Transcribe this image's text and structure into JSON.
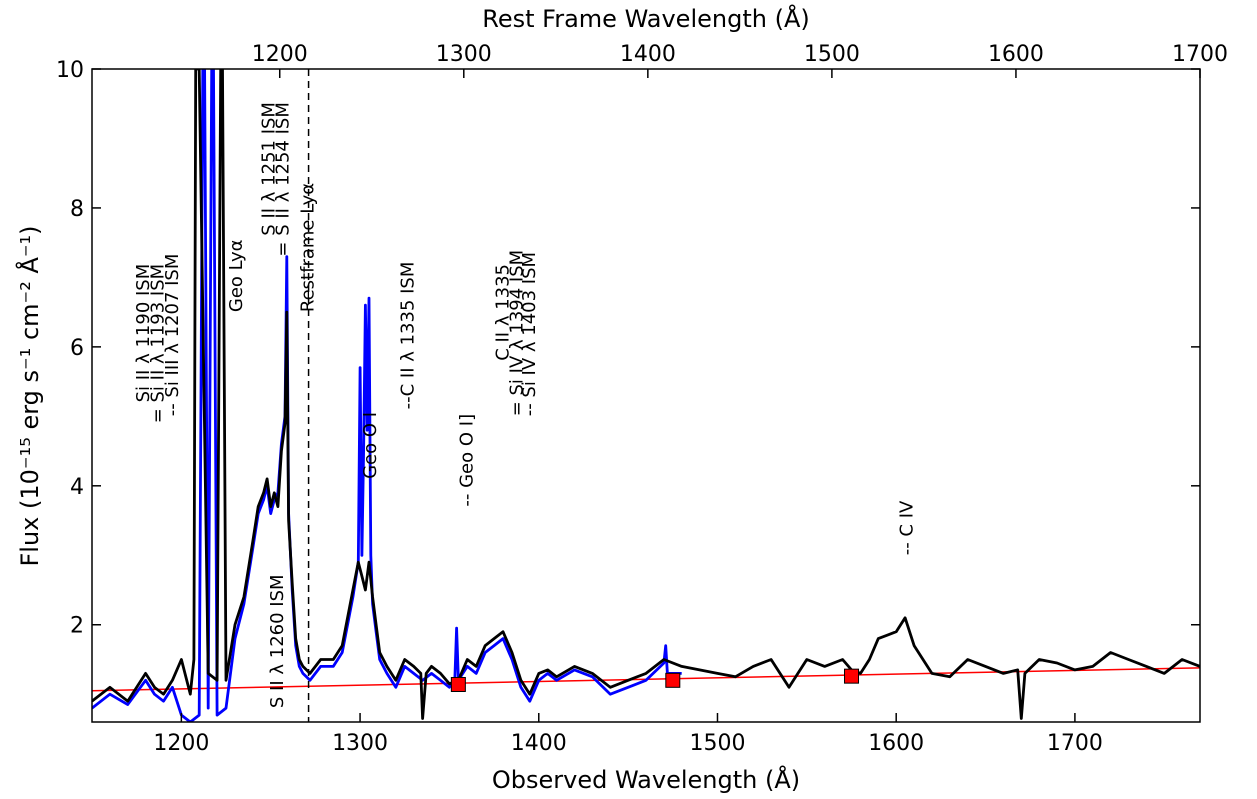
{
  "chart_data": {
    "type": "line",
    "title": "",
    "xlabel": "Observed Wavelength (Å)",
    "x2label": "Rest Frame Wavelength (Å)",
    "ylabel": "Flux (10⁻¹⁵ erg s⁻¹ cm⁻² Å⁻¹)",
    "xlim": [
      1150,
      1770
    ],
    "ylim": [
      0.6,
      10
    ],
    "x2lim": [
      1098,
      1700
    ],
    "x_ticks": [
      1200,
      1300,
      1400,
      1500,
      1600,
      1700
    ],
    "x2_ticks": [
      1200,
      1300,
      1400,
      1500,
      1600,
      1700
    ],
    "y_ticks": [
      2,
      4,
      6,
      8,
      10
    ],
    "grid": false,
    "colors": {
      "black_series": "#000000",
      "blue_series": "#0000ff",
      "continuum": "#ff0000",
      "markers": "#ff0000"
    },
    "series": [
      {
        "color": "#000000",
        "x": [
          1150,
          1160,
          1170,
          1180,
          1185,
          1190,
          1195,
          1200,
          1205,
          1207,
          1208,
          1210,
          1215,
          1220,
          1222,
          1223,
          1225,
          1230,
          1235,
          1240,
          1243,
          1246,
          1248,
          1250,
          1252,
          1254,
          1256,
          1258,
          1259,
          1260,
          1262,
          1264,
          1266,
          1268,
          1272,
          1278,
          1285,
          1290,
          1296,
          1299,
          1301,
          1303,
          1305,
          1307,
          1309,
          1311,
          1315,
          1320,
          1325,
          1330,
          1334,
          1335,
          1337,
          1340,
          1345,
          1350,
          1355,
          1360,
          1365,
          1370,
          1375,
          1380,
          1385,
          1390,
          1395,
          1400,
          1405,
          1410,
          1420,
          1430,
          1440,
          1450,
          1460,
          1470,
          1480,
          1490,
          1500,
          1510,
          1520,
          1530,
          1540,
          1550,
          1560,
          1570,
          1575,
          1580,
          1585,
          1590,
          1600,
          1605,
          1610,
          1620,
          1630,
          1640,
          1650,
          1660,
          1668,
          1670,
          1672,
          1680,
          1690,
          1700,
          1710,
          1720,
          1730,
          1740,
          1750,
          1760,
          1770
        ],
        "y": [
          0.9,
          1.1,
          0.9,
          1.3,
          1.1,
          1.0,
          1.2,
          1.5,
          1.0,
          1.5,
          10,
          10,
          1.3,
          1.2,
          10,
          10,
          1.2,
          2.0,
          2.4,
          3.2,
          3.7,
          3.9,
          4.1,
          3.7,
          3.9,
          3.7,
          4.5,
          4.9,
          6.5,
          3.5,
          2.6,
          1.8,
          1.5,
          1.4,
          1.3,
          1.5,
          1.5,
          1.7,
          2.5,
          2.9,
          2.7,
          2.5,
          2.9,
          2.4,
          2.0,
          1.6,
          1.4,
          1.2,
          1.5,
          1.4,
          1.3,
          0.65,
          1.3,
          1.4,
          1.3,
          1.15,
          1.2,
          1.5,
          1.4,
          1.7,
          1.8,
          1.9,
          1.6,
          1.2,
          1.0,
          1.3,
          1.35,
          1.25,
          1.4,
          1.3,
          1.1,
          1.2,
          1.3,
          1.5,
          1.4,
          1.35,
          1.3,
          1.25,
          1.4,
          1.5,
          1.1,
          1.5,
          1.4,
          1.5,
          1.35,
          1.3,
          1.5,
          1.8,
          1.9,
          2.1,
          1.7,
          1.3,
          1.25,
          1.5,
          1.4,
          1.3,
          1.35,
          0.65,
          1.3,
          1.5,
          1.45,
          1.35,
          1.4,
          1.6,
          1.5,
          1.4,
          1.3,
          1.5,
          1.4
        ]
      },
      {
        "color": "#0000ff",
        "x": [
          1150,
          1160,
          1170,
          1180,
          1185,
          1190,
          1195,
          1200,
          1205,
          1210,
          1212,
          1213,
          1215,
          1217,
          1218,
          1220,
          1225,
          1230,
          1235,
          1240,
          1243,
          1246,
          1248,
          1250,
          1252,
          1254,
          1256,
          1258,
          1259,
          1260,
          1262,
          1264,
          1266,
          1268,
          1272,
          1278,
          1285,
          1290,
          1296,
          1299,
          1300,
          1301,
          1302,
          1303,
          1304,
          1305,
          1306,
          1307,
          1309,
          1311,
          1315,
          1320,
          1325,
          1330,
          1335,
          1340,
          1345,
          1350,
          1353,
          1354,
          1355,
          1360,
          1365,
          1370,
          1375,
          1380,
          1385,
          1390,
          1395,
          1400,
          1405,
          1410,
          1420,
          1430,
          1440,
          1450,
          1460,
          1470,
          1471,
          1472,
          1480
        ],
        "y": [
          0.8,
          1.0,
          0.85,
          1.2,
          1.0,
          0.9,
          1.1,
          0.7,
          0.6,
          0.7,
          10,
          10,
          0.8,
          10,
          10,
          0.7,
          0.8,
          1.8,
          2.3,
          3.1,
          3.6,
          3.8,
          4.0,
          3.6,
          3.8,
          3.9,
          4.6,
          5.0,
          7.3,
          3.6,
          2.5,
          1.7,
          1.4,
          1.3,
          1.2,
          1.4,
          1.4,
          1.6,
          2.4,
          2.9,
          5.7,
          3.0,
          4.5,
          6.6,
          4.8,
          6.7,
          3.0,
          2.3,
          1.9,
          1.5,
          1.3,
          1.1,
          1.4,
          1.3,
          1.2,
          1.3,
          1.2,
          1.1,
          1.2,
          1.95,
          1.2,
          1.4,
          1.3,
          1.6,
          1.7,
          1.8,
          1.5,
          1.1,
          0.9,
          1.2,
          1.3,
          1.2,
          1.35,
          1.25,
          1.0,
          1.1,
          1.2,
          1.45,
          1.7,
          1.3,
          1.3
        ]
      }
    ],
    "continuum": {
      "x": [
        1150,
        1770
      ],
      "y": [
        1.05,
        1.38
      ]
    },
    "markers": {
      "x": [
        1355,
        1475,
        1575
      ],
      "y": [
        1.14,
        1.2,
        1.26
      ]
    },
    "annotations": [
      {
        "text": "Si II λ 1190 ISM",
        "x": 1182,
        "y": 5.2
      },
      {
        "text": "= Si II λ 1193 ISM",
        "x": 1190,
        "y": 4.9
      },
      {
        "text": "-- Si III λ 1207 ISM",
        "x": 1198,
        "y": 5.0
      },
      {
        "text": "Geo Lyα",
        "x": 1234,
        "y": 6.5
      },
      {
        "text": "S II λ 1251 ISM",
        "x": 1252,
        "y": 7.6
      },
      {
        "text": "= S II λ 1254 ISM",
        "x": 1260,
        "y": 7.3
      },
      {
        "text": "Restframe Lyα",
        "x": 1274,
        "y": 6.5
      },
      {
        "text": "S II λ 1260 ISM",
        "x": 1257,
        "y": 0.8
      },
      {
        "text": "Geo O I",
        "x": 1309,
        "y": 4.1
      },
      {
        "text": "--C II λ 1335 ISM",
        "x": 1330,
        "y": 5.1
      },
      {
        "text": "-- Geo O I]",
        "x": 1363,
        "y": 3.7
      },
      {
        "text": "C II λ 1335",
        "x": 1383,
        "y": 5.8
      },
      {
        "text": "= Si IV λ 1394 ISM",
        "x": 1391,
        "y": 5.0
      },
      {
        "text": "-- Si IV λ 1403 ISM",
        "x": 1398,
        "y": 5.0
      },
      {
        "text": "-- C IV",
        "x": 1609,
        "y": 3.0
      }
    ]
  }
}
